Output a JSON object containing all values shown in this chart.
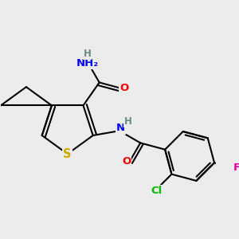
{
  "bg_color": "#ececec",
  "bond_color": "#000000",
  "bond_width": 1.5,
  "atom_colors": {
    "C": "#000000",
    "H": "#6a8a8a",
    "N": "#0000ff",
    "O": "#ff0000",
    "S": "#ccaa00",
    "Cl": "#00bb00",
    "F": "#dd00aa"
  },
  "font_size": 9.5
}
